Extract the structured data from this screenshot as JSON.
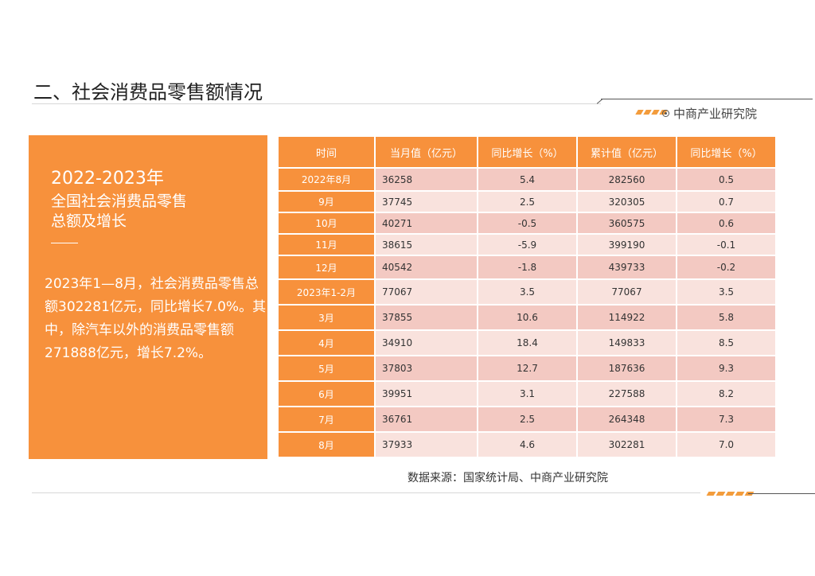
{
  "page": {
    "title": "二、社会消费品零售额情况",
    "brand": "中商产业研究院",
    "brand_icon": "target-icon",
    "accent_color": "#f7913c"
  },
  "panel": {
    "year": "2022-2023年",
    "line1": "全国社会消费品零售",
    "line2": "总额及增长",
    "body": "2023年1—8月，社会消费品零售总额302281亿元，同比增长7.0%。其中，除汽车以外的消费品零售额271888亿元，增长7.2%。"
  },
  "table": {
    "headers": [
      "时间",
      "当月值（亿元）",
      "同比增长（%）",
      "累计值（亿元）",
      "同比增长（%）"
    ],
    "rows": [
      [
        "2022年8月",
        "36258",
        "5.4",
        "282560",
        "0.5"
      ],
      [
        "9月",
        "37745",
        "2.5",
        "320305",
        "0.7"
      ],
      [
        "10月",
        "40271",
        "-0.5",
        "360575",
        "0.6"
      ],
      [
        "11月",
        "38615",
        "-5.9",
        "399190",
        "-0.1"
      ],
      [
        "12月",
        "40542",
        "-1.8",
        "439733",
        "-0.2"
      ],
      [
        "2023年1-2月",
        "77067",
        "3.5",
        "77067",
        "3.5"
      ],
      [
        "3月",
        "37855",
        "10.6",
        "114922",
        "5.8"
      ],
      [
        "4月",
        "34910",
        "18.4",
        "149833",
        "8.5"
      ],
      [
        "5月",
        "37803",
        "12.7",
        "187636",
        "9.3"
      ],
      [
        "6月",
        "39951",
        "3.1",
        "227588",
        "8.2"
      ],
      [
        "7月",
        "36761",
        "2.5",
        "264348",
        "7.3"
      ],
      [
        "8月",
        "37933",
        "4.6",
        "302281",
        "7.0"
      ]
    ]
  },
  "source": "数据来源：国家统计局、中商产业研究院"
}
